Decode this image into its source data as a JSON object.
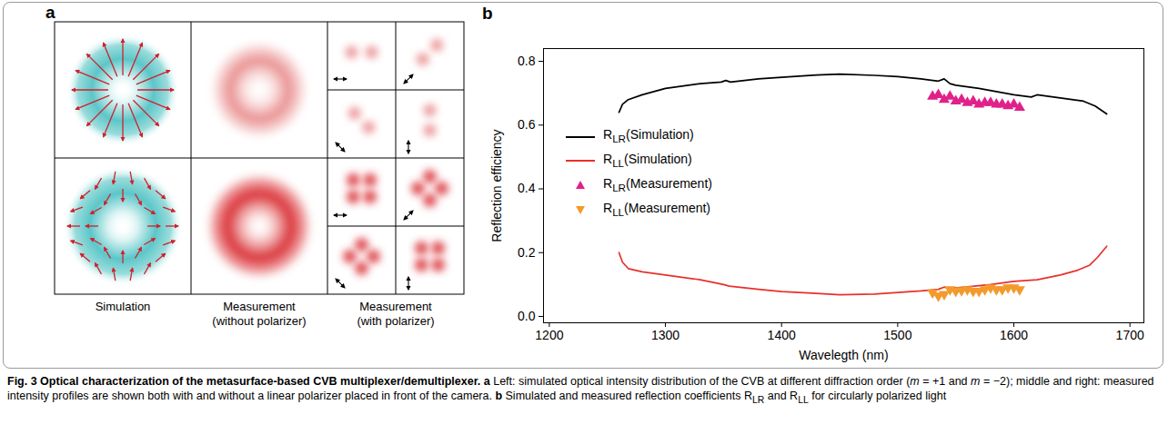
{
  "figure": {
    "panel_a": {
      "letter": "a",
      "columns": [
        "Simulation",
        "Measurement (without polarizer)",
        "Measurement (with polarizer)"
      ]
    },
    "panel_b": {
      "letter": "b"
    },
    "caption": {
      "label": "Fig. 3",
      "title": "Optical characterization of the metasurface-based CVB multiplexer/demultiplexer.",
      "parts": [
        {
          "letter": "a",
          "text": "Left: simulated optical intensity distribution of the CVB at different diffraction order (m = +1 and m = −2); middle and right: measured intensity profiles are shown both with and without a linear polarizer placed in front of the camera."
        },
        {
          "letter": "b",
          "text": "Simulated and measured reflection coefficients RLR and RLL for circularly polarized light"
        }
      ]
    }
  },
  "chart_data": {
    "type": "line",
    "x_label": "Wavelegth (nm)",
    "y_label": "Reflection efficiency",
    "xlim": [
      1195,
      1712
    ],
    "xticks": [
      1200,
      1300,
      1400,
      1500,
      1600,
      1700
    ],
    "ylim": [
      -0.02,
      0.84
    ],
    "yticks": [
      {
        "value": 0,
        "label": "0.0"
      },
      {
        "value": 0.2,
        "label": "0.2"
      },
      {
        "value": 0.4,
        "label": "0.4"
      },
      {
        "value": 0.6,
        "label": "0.6"
      },
      {
        "value": 0.8,
        "label": "0.8"
      }
    ],
    "legend": "left",
    "series": [
      {
        "name": "RLR(Simulation)",
        "type": "line",
        "line_style": "solid",
        "color": "#000000",
        "x": [
          1260,
          1263,
          1268,
          1280,
          1300,
          1330,
          1348,
          1352,
          1356,
          1380,
          1400,
          1430,
          1450,
          1480,
          1500,
          1520,
          1535,
          1540,
          1545,
          1550,
          1570,
          1600,
          1615,
          1620,
          1640,
          1660,
          1670,
          1680
        ],
        "values": [
          0.64,
          0.665,
          0.68,
          0.695,
          0.715,
          0.73,
          0.735,
          0.74,
          0.735,
          0.745,
          0.75,
          0.757,
          0.76,
          0.756,
          0.752,
          0.745,
          0.738,
          0.745,
          0.73,
          0.725,
          0.715,
          0.695,
          0.688,
          0.695,
          0.685,
          0.675,
          0.66,
          0.635
        ]
      },
      {
        "name": "RLL(Simulation)",
        "type": "line",
        "line_style": "solid",
        "color": "#e8302a",
        "x": [
          1260,
          1263,
          1268,
          1280,
          1300,
          1330,
          1350,
          1355,
          1380,
          1400,
          1430,
          1450,
          1480,
          1500,
          1520,
          1535,
          1540,
          1545,
          1560,
          1580,
          1600,
          1620,
          1640,
          1655,
          1665,
          1672,
          1680
        ],
        "values": [
          0.2,
          0.17,
          0.15,
          0.14,
          0.13,
          0.115,
          0.1,
          0.095,
          0.085,
          0.078,
          0.072,
          0.068,
          0.07,
          0.075,
          0.08,
          0.085,
          0.092,
          0.088,
          0.093,
          0.1,
          0.11,
          0.115,
          0.13,
          0.145,
          0.16,
          0.185,
          0.22
        ]
      },
      {
        "name": "RLR(Measurement)",
        "type": "scatter",
        "marker": "triangle-up",
        "color": "#e0218a",
        "x": [
          1530,
          1535,
          1540,
          1545,
          1550,
          1555,
          1560,
          1565,
          1570,
          1575,
          1580,
          1585,
          1590,
          1595,
          1600,
          1605
        ],
        "values": [
          0.69,
          0.695,
          0.68,
          0.69,
          0.675,
          0.68,
          0.67,
          0.675,
          0.665,
          0.67,
          0.67,
          0.665,
          0.665,
          0.66,
          0.665,
          0.655
        ]
      },
      {
        "name": "RLL(Measurement)",
        "type": "scatter",
        "marker": "triangle-down",
        "color": "#f39a2c",
        "x": [
          1530,
          1535,
          1540,
          1545,
          1550,
          1555,
          1560,
          1565,
          1570,
          1575,
          1580,
          1585,
          1590,
          1595,
          1600,
          1605
        ],
        "values": [
          0.075,
          0.065,
          0.07,
          0.085,
          0.08,
          0.082,
          0.085,
          0.08,
          0.08,
          0.085,
          0.09,
          0.085,
          0.085,
          0.09,
          0.09,
          0.085
        ]
      }
    ]
  }
}
